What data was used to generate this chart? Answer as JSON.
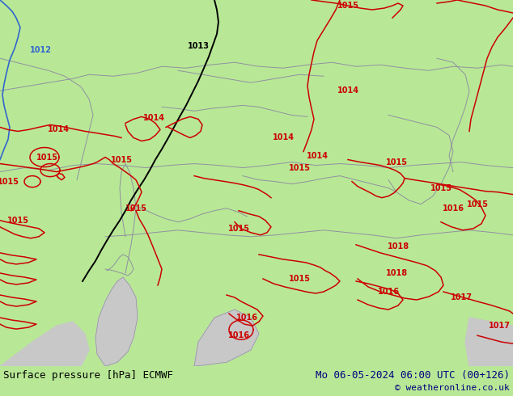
{
  "background_color": "#b8e896",
  "sea_color": "#c8c8c8",
  "border_color": "#9090a0",
  "fig_width": 6.34,
  "fig_height": 4.9,
  "dpi": 100,
  "bottom_bar_color": "#ffffff",
  "title_left": "Surface pressure [hPa] ECMWF",
  "title_right": "Mo 06-05-2024 06:00 UTC (00+126)",
  "title_right2": "© weatheronline.co.uk",
  "title_fontsize": 9,
  "title_color": "#000080",
  "red": "#cc0000",
  "black": "#000000",
  "blue": "#3366cc",
  "lw": 1.1,
  "lfs": 7
}
